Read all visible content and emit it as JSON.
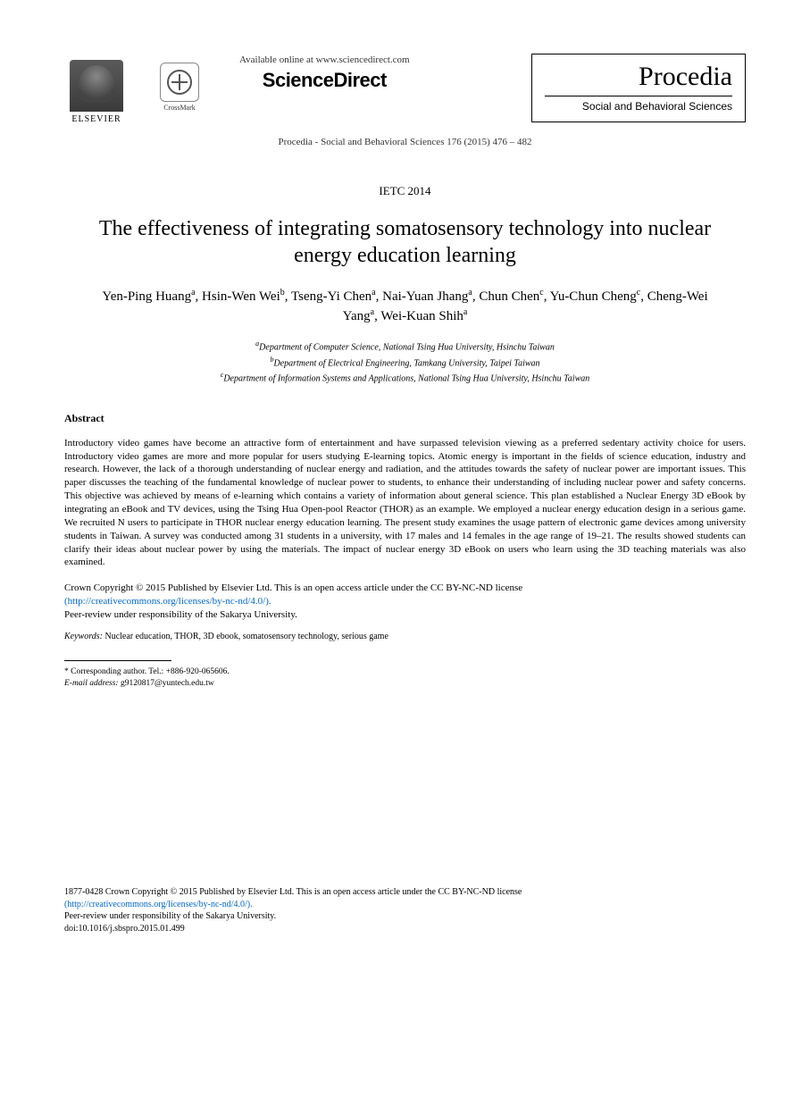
{
  "header": {
    "elsevier_label": "ELSEVIER",
    "crossmark_label": "CrossMark",
    "available_text": "Available online at www.sciencedirect.com",
    "sciencedirect": "ScienceDirect",
    "procedia_title": "Procedia",
    "procedia_subtitle": "Social and Behavioral Sciences",
    "journal_reference": "Procedia - Social and Behavioral Sciences 176 (2015) 476 – 482"
  },
  "paper": {
    "conference": "IETC 2014",
    "title": "The effectiveness of integrating somatosensory technology into nuclear energy education learning",
    "authors_html": "Yen-Ping Huang<sup>a</sup>, Hsin-Wen Wei<sup>b</sup>, Tseng-Yi Chen<sup>a</sup>, Nai-Yuan Jhang<sup>a</sup>, Chun Chen<sup>c</sup>, Yu-Chun Cheng<sup>c</sup>, Cheng-Wei Yang<sup>a</sup>, Wei-Kuan Shih<sup>a</sup>",
    "affiliations": {
      "a": "Department of Computer Science, National Tsing Hua University, Hsinchu Taiwan",
      "b": "Department of Electrical Engineering, Tamkang University, Taipei Taiwan",
      "c": "Department of Information Systems and Applications, National Tsing Hua University, Hsinchu Taiwan"
    }
  },
  "abstract": {
    "heading": "Abstract",
    "text": "Introductory video games have become an attractive form of entertainment and have surpassed television viewing as a preferred sedentary activity choice for users. Introductory video games are more and more popular for users studying E-learning topics. Atomic energy is important in the fields of science education, industry and research. However, the lack of a thorough understanding of nuclear energy and radiation, and the attitudes towards the safety of nuclear power are important issues. This paper discusses the teaching of the fundamental knowledge of nuclear power to students, to enhance their understanding of including nuclear power and safety concerns. This objective was achieved by means of e-learning which contains a variety of information about general science. This plan established a Nuclear Energy 3D eBook by integrating an eBook and TV devices, using the Tsing Hua Open-pool Reactor (THOR) as an example. We employed a nuclear energy education design in a serious game. We recruited N users to participate in THOR nuclear energy education learning. The present study examines the usage pattern of electronic game devices among university students in Taiwan. A survey was conducted among 31 students in a university, with 17 males and 14 females in the age range of 19–21. The results showed students can clarify their ideas about nuclear power by using the materials. The impact of nuclear energy 3D eBook on users who learn using the 3D teaching materials was also examined."
  },
  "copyright": {
    "line1": "Crown Copyright © 2015 Published by Elsevier Ltd. This is an open access article under the CC BY-NC-ND license",
    "license_url": "(http://creativecommons.org/licenses/by-nc-nd/4.0/).",
    "peer_review": "Peer-review under responsibility of the Sakarya University."
  },
  "keywords": {
    "label": "Keywords:",
    "text": " Nuclear education, THOR, 3D ebook, somatosensory technology, serious game"
  },
  "footnote": {
    "corresponding": "* Corresponding author. Tel.: +886-920-065606.",
    "email_label": "E-mail address:",
    "email": " g9120817@yuntech.edu.tw"
  },
  "footer": {
    "issn_line": "1877-0428 Crown Copyright © 2015 Published by Elsevier Ltd. This is an open access article under the CC BY-NC-ND license",
    "license_url": "(http://creativecommons.org/licenses/by-nc-nd/4.0/).",
    "peer_review": "Peer-review under responsibility of the Sakarya University.",
    "doi": "doi:10.1016/j.sbspro.2015.01.499"
  },
  "colors": {
    "text": "#000000",
    "link": "#0066cc",
    "background": "#ffffff"
  },
  "typography": {
    "body_family": "Times New Roman",
    "title_size_pt": 24,
    "author_size_pt": 15,
    "abstract_size_pt": 11,
    "footnote_size_pt": 9.5
  }
}
